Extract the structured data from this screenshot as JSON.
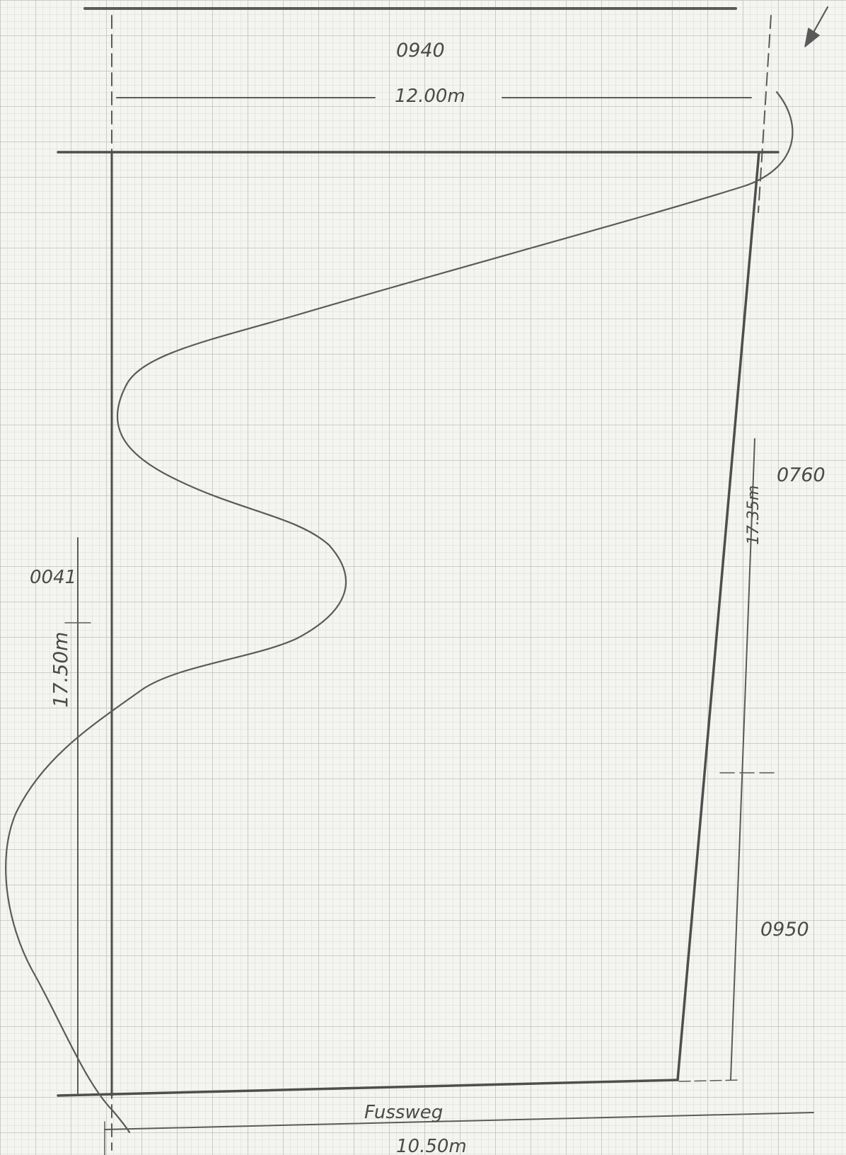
{
  "labels": {
    "top_code": "0940",
    "top_dimension": "12.00m",
    "left_code": "0041",
    "left_dimension": "17.50m",
    "right_code": "0760",
    "right_dimension": "17.35m",
    "right_lower_code": "0950",
    "footpath": "Fussweg",
    "bottom_dimension": "10.50m"
  },
  "colors": {
    "paper": "#f4f4f1",
    "grid_fine": "#d2d4d0",
    "grid_major": "#b4b7b2",
    "ink": "#5a5a5a",
    "ink_dark": "#4e4e4e"
  },
  "icons": {
    "north_arrow": "north-arrow-icon"
  }
}
